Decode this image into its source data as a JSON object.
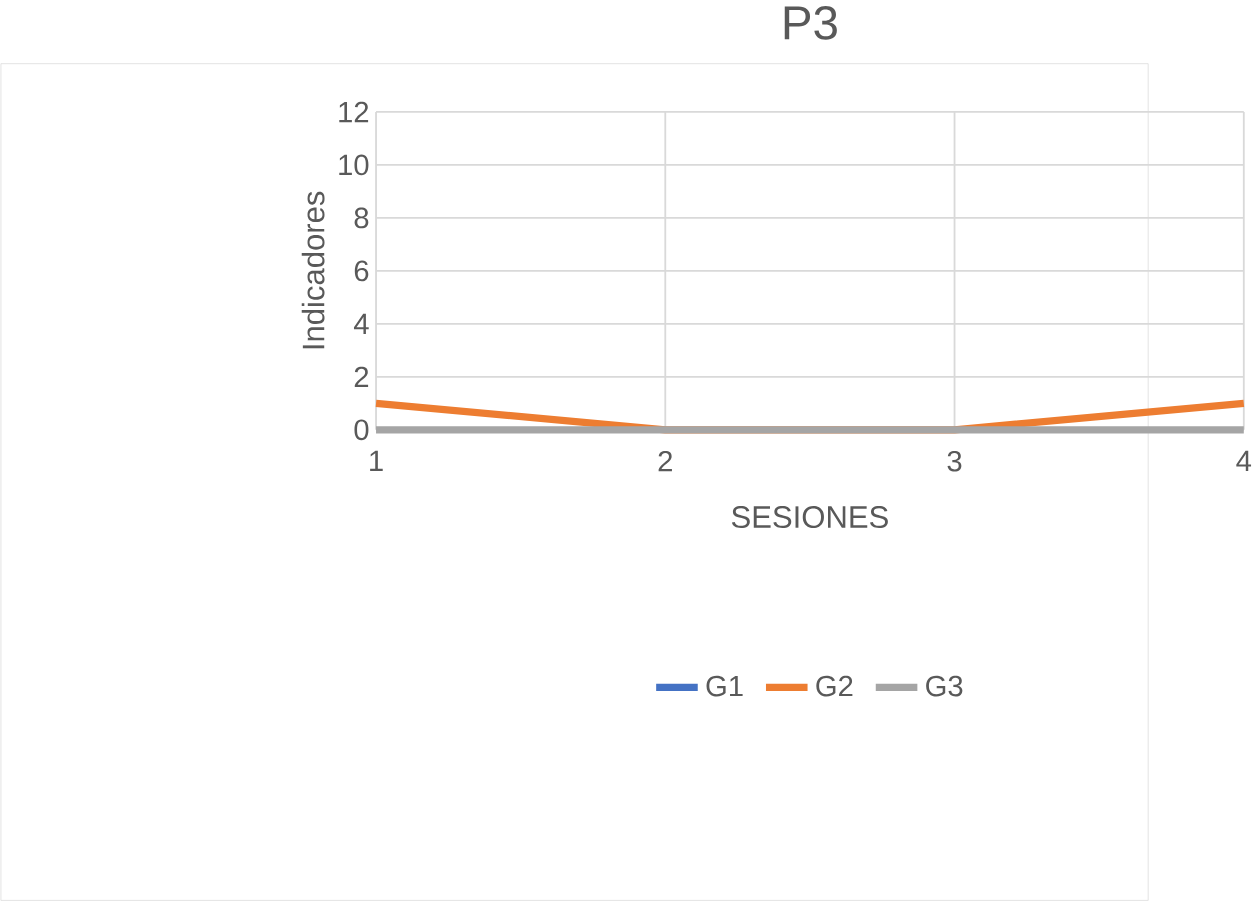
{
  "chart_data": {
    "type": "line",
    "title": "P3",
    "xlabel": "SESIONES",
    "ylabel": "Indicadores",
    "x": [
      1,
      2,
      3,
      4
    ],
    "series": [
      {
        "name": "G1",
        "color": "#4472c4",
        "values": [
          null,
          null,
          null,
          null
        ]
      },
      {
        "name": "G2",
        "color": "#ed7d31",
        "values": [
          1,
          0,
          0,
          1
        ]
      },
      {
        "name": "G3",
        "color": "#a5a5a5",
        "values": [
          0,
          0,
          0,
          0
        ]
      }
    ],
    "xlim": [
      1,
      4
    ],
    "xticks": [
      1,
      2,
      3,
      4
    ],
    "ylim": [
      0,
      12
    ],
    "yticks": [
      0,
      2,
      4,
      6,
      8,
      10,
      12
    ],
    "grid": true,
    "legend": "bottom",
    "marker": "none",
    "line_style": "solid"
  }
}
